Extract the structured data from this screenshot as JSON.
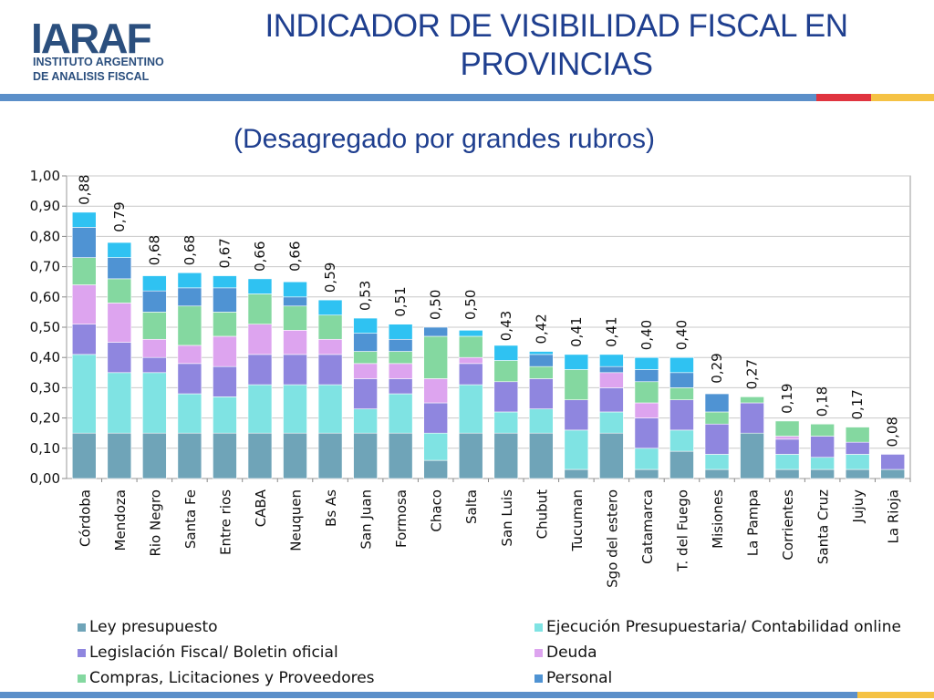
{
  "header": {
    "logo_letters": "IARAF",
    "logo_line1": "INSTITUTO ARGENTINO",
    "logo_line2": "DE ANALISIS FISCAL",
    "title_line1": "INDICADOR DE VISIBILIDAD FISCAL EN",
    "title_line2": "PROVINCIAS"
  },
  "colors": {
    "title": "#1f3f8f",
    "stripe_blue": "#5b8fc9",
    "stripe_red": "#e0343f",
    "stripe_yellow": "#f5c244",
    "series": [
      "#6fa4b8",
      "#7fe3e3",
      "#8f86df",
      "#dda4ef",
      "#84d8a0",
      "#4f93d3",
      "#2fc2f2"
    ]
  },
  "chart_data": {
    "type": "bar",
    "stacked": true,
    "title": "(Desagregado por grandes rubros)",
    "ylim": [
      0,
      1.0
    ],
    "yticks": [
      "0,00",
      "0,10",
      "0,20",
      "0,30",
      "0,40",
      "0,50",
      "0,60",
      "0,70",
      "0,80",
      "0,90",
      "1,00"
    ],
    "grid": true,
    "legend_position": "bottom",
    "categories": [
      "Córdoba",
      "Mendoza",
      "Rio Negro",
      "Santa Fe",
      "Entre rios",
      "CABA",
      "Neuquen",
      "Bs As",
      "San Juan",
      "Formosa",
      "Chaco",
      "Salta",
      "San Luis",
      "Chubut",
      "Tucuman",
      "Sgo del estero",
      "Catamarca",
      "T. del Fuego",
      "Misiones",
      "La Pampa",
      "Corrientes",
      "Santa Cruz",
      "Jujuy",
      "La Rioja"
    ],
    "totals": [
      0.88,
      0.79,
      0.68,
      0.68,
      0.67,
      0.66,
      0.66,
      0.59,
      0.53,
      0.51,
      0.5,
      0.5,
      0.43,
      0.42,
      0.41,
      0.41,
      0.4,
      0.4,
      0.29,
      0.27,
      0.19,
      0.18,
      0.17,
      0.08
    ],
    "total_labels": [
      "0,88",
      "0,79",
      "0,68",
      "0,68",
      "0,67",
      "0,66",
      "0,66",
      "0,59",
      "0,53",
      "0,51",
      "0,50",
      "0,50",
      "0,43",
      "0,42",
      "0,41",
      "0,41",
      "0,40",
      "0,40",
      "0,29",
      "0,27",
      "0,19",
      "0,18",
      "0,17",
      "0,08"
    ],
    "series": [
      {
        "name": "Ley presupuesto",
        "values": [
          0.15,
          0.15,
          0.15,
          0.15,
          0.15,
          0.15,
          0.15,
          0.15,
          0.15,
          0.15,
          0.06,
          0.15,
          0.15,
          0.15,
          0.03,
          0.15,
          0.03,
          0.09,
          0.03,
          0.15,
          0.03,
          0.03,
          0.03,
          0.03
        ]
      },
      {
        "name": "Ejecución Presupuestaria/ Contabilidad  online",
        "values": [
          0.26,
          0.2,
          0.2,
          0.13,
          0.12,
          0.16,
          0.16,
          0.16,
          0.08,
          0.13,
          0.09,
          0.16,
          0.07,
          0.08,
          0.13,
          0.07,
          0.07,
          0.07,
          0.05,
          0.0,
          0.05,
          0.04,
          0.05,
          0.0
        ]
      },
      {
        "name": "Legislación Fiscal/ Boletin oficial",
        "values": [
          0.1,
          0.1,
          0.05,
          0.1,
          0.1,
          0.1,
          0.1,
          0.1,
          0.1,
          0.05,
          0.1,
          0.07,
          0.1,
          0.1,
          0.1,
          0.08,
          0.1,
          0.1,
          0.1,
          0.1,
          0.05,
          0.07,
          0.04,
          0.05
        ]
      },
      {
        "name": "Deuda",
        "values": [
          0.13,
          0.13,
          0.06,
          0.06,
          0.1,
          0.1,
          0.08,
          0.05,
          0.05,
          0.05,
          0.08,
          0.02,
          0.0,
          0.0,
          0.0,
          0.05,
          0.05,
          0.0,
          0.0,
          0.0,
          0.01,
          0.0,
          0.0,
          0.0
        ]
      },
      {
        "name": "Compras, Licitaciones y Proveedores",
        "values": [
          0.09,
          0.08,
          0.09,
          0.13,
          0.08,
          0.1,
          0.08,
          0.08,
          0.04,
          0.04,
          0.14,
          0.07,
          0.07,
          0.04,
          0.1,
          0.0,
          0.07,
          0.04,
          0.04,
          0.02,
          0.05,
          0.04,
          0.05,
          0.0
        ]
      },
      {
        "name": "Personal",
        "values": [
          0.1,
          0.07,
          0.07,
          0.06,
          0.08,
          0.0,
          0.03,
          0.0,
          0.06,
          0.04,
          0.03,
          0.0,
          0.0,
          0.04,
          0.0,
          0.02,
          0.04,
          0.05,
          0.06,
          0.0,
          0.0,
          0.0,
          0.0,
          0.0
        ]
      },
      {
        "name": "",
        "values": [
          0.05,
          0.05,
          0.05,
          0.05,
          0.04,
          0.05,
          0.05,
          0.05,
          0.05,
          0.05,
          0.0,
          0.02,
          0.05,
          0.01,
          0.05,
          0.04,
          0.04,
          0.05,
          0.0,
          0.0,
          0.0,
          0.0,
          0.0,
          0.0
        ]
      }
    ]
  }
}
